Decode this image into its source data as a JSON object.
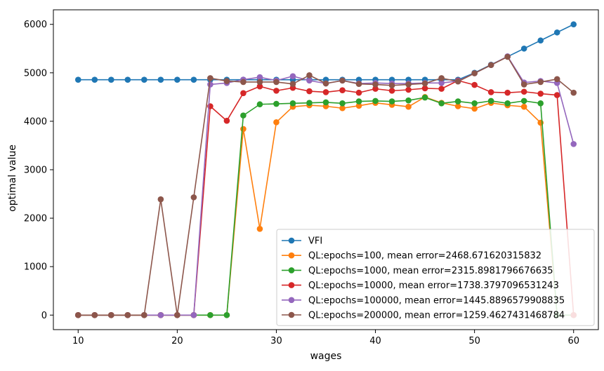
{
  "chart_data": {
    "type": "line",
    "title": "",
    "xlabel": "wages",
    "ylabel": "optimal value",
    "xlim": [
      7.5,
      62.5
    ],
    "ylim": [
      -300,
      6300
    ],
    "xticks": [
      10,
      20,
      30,
      40,
      50,
      60
    ],
    "yticks": [
      0,
      1000,
      2000,
      3000,
      4000,
      5000,
      6000
    ],
    "grid": false,
    "legend_position": "lower-right",
    "x": [
      10.0,
      11.6667,
      13.3333,
      15.0,
      16.6667,
      18.3333,
      20.0,
      21.6667,
      23.3333,
      25.0,
      26.6667,
      28.3333,
      30.0,
      31.6667,
      33.3333,
      35.0,
      36.6667,
      38.3333,
      40.0,
      41.6667,
      43.3333,
      45.0,
      46.6667,
      48.3333,
      50.0,
      51.6667,
      53.3333,
      55.0,
      56.6667,
      58.3333,
      60.0
    ],
    "series": [
      {
        "name": "VFI",
        "color": "#1f77b4",
        "values": [
          4857,
          4857,
          4857,
          4857,
          4857,
          4857,
          4857,
          4857,
          4857,
          4857,
          4857,
          4857,
          4857,
          4857,
          4857,
          4857,
          4857,
          4857,
          4857,
          4857,
          4857,
          4857,
          4857,
          4857,
          5000,
          5167,
          5333,
          5500,
          5667,
          5833,
          6000
        ]
      },
      {
        "name": "QL:epochs=100, mean error=2468.671620315832",
        "color": "#ff7f0e",
        "values": [
          0,
          0,
          0,
          0,
          0,
          0,
          0,
          0,
          0,
          0,
          3840,
          1780,
          3980,
          4300,
          4330,
          4310,
          4270,
          4320,
          4380,
          4340,
          4300,
          4500,
          4380,
          4310,
          4260,
          4380,
          4330,
          4300,
          3970,
          0,
          0
        ]
      },
      {
        "name": "QL:epochs=1000, mean error=2315.8981796676635",
        "color": "#2ca02c",
        "values": [
          0,
          0,
          0,
          0,
          0,
          0,
          0,
          0,
          0,
          0,
          4120,
          4350,
          4360,
          4370,
          4380,
          4390,
          4370,
          4410,
          4420,
          4410,
          4430,
          4490,
          4370,
          4410,
          4370,
          4420,
          4370,
          4420,
          4370,
          0,
          0
        ]
      },
      {
        "name": "QL:epochs=10000, mean error=1738.3797096531243",
        "color": "#d62728",
        "values": [
          0,
          0,
          0,
          0,
          0,
          0,
          0,
          0,
          4310,
          4010,
          4580,
          4720,
          4630,
          4690,
          4620,
          4600,
          4640,
          4590,
          4670,
          4630,
          4650,
          4680,
          4670,
          4840,
          4750,
          4600,
          4590,
          4610,
          4570,
          4540,
          0
        ]
      },
      {
        "name": "QL:epochs=100000, mean error=1445.8896579908835",
        "color": "#9467bd",
        "values": [
          0,
          0,
          0,
          0,
          0,
          0,
          0,
          0,
          4760,
          4790,
          4860,
          4910,
          4840,
          4930,
          4840,
          4780,
          4840,
          4780,
          4790,
          4780,
          4780,
          4790,
          4790,
          4830,
          4990,
          5160,
          5340,
          4800,
          4830,
          4790,
          3530
        ]
      },
      {
        "name": "QL:epochs=200000, mean error=1259.4627431468784",
        "color": "#8c564b",
        "values": [
          0,
          0,
          0,
          0,
          0,
          2390,
          0,
          2430,
          4890,
          4830,
          4810,
          4810,
          4810,
          4770,
          4950,
          4780,
          4840,
          4770,
          4760,
          4740,
          4760,
          4780,
          4890,
          4820,
          4990,
          5160,
          5330,
          4760,
          4810,
          4870,
          4590
        ]
      }
    ]
  }
}
